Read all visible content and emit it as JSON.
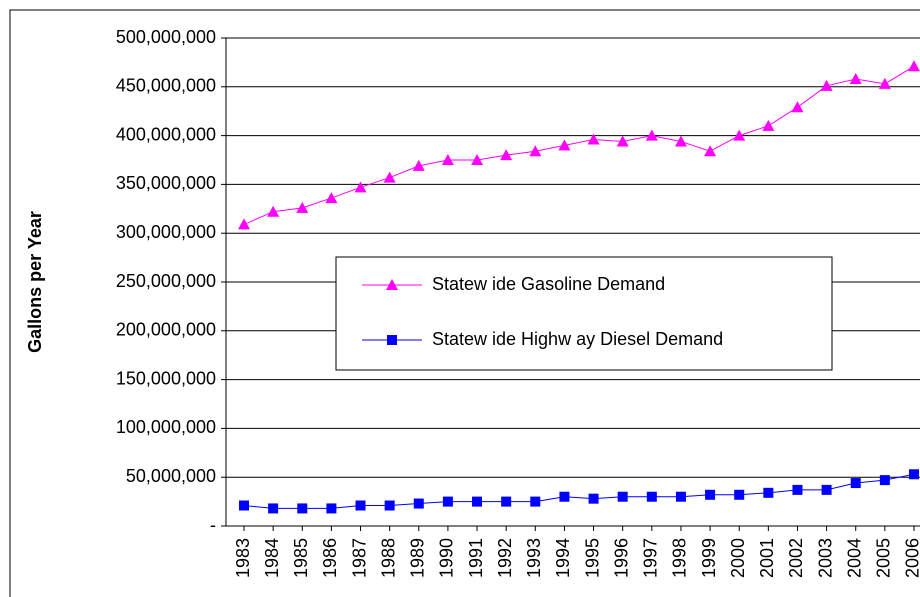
{
  "chart_data": {
    "type": "line",
    "y_label": "Gallons per Year",
    "categories": [
      "1983",
      "1984",
      "1985",
      "1986",
      "1987",
      "1988",
      "1989",
      "1990",
      "1991",
      "1992",
      "1993",
      "1994",
      "1995",
      "1996",
      "1997",
      "1998",
      "1999",
      "2000",
      "2001",
      "2002",
      "2003",
      "2004",
      "2005",
      "2006"
    ],
    "series": [
      {
        "name": "Statew ide Gasoline Demand",
        "color": "#ff00ff",
        "marker": "triangle",
        "values": [
          309000000,
          322000000,
          326000000,
          336000000,
          347000000,
          357000000,
          369000000,
          375000000,
          375000000,
          380000000,
          384000000,
          390000000,
          396000000,
          394000000,
          400000000,
          394000000,
          384000000,
          400000000,
          410000000,
          429000000,
          451000000,
          458000000,
          453000000,
          471000000
        ]
      },
      {
        "name": "Statew ide Highw ay Diesel Demand",
        "color": "#0000ff",
        "marker": "square",
        "values": [
          21000000,
          18000000,
          18000000,
          18000000,
          21000000,
          21000000,
          23000000,
          25000000,
          25000000,
          25000000,
          25000000,
          30000000,
          28000000,
          30000000,
          30000000,
          30000000,
          32000000,
          32000000,
          34000000,
          37000000,
          37000000,
          44000000,
          47000000,
          53000000
        ]
      }
    ],
    "ylim": [
      0,
      500000000
    ],
    "yticks": [
      {
        "value": 0,
        "label": "-"
      },
      {
        "value": 50000000,
        "label": "50,000,000"
      },
      {
        "value": 100000000,
        "label": "100,000,000"
      },
      {
        "value": 150000000,
        "label": "150,000,000"
      },
      {
        "value": 200000000,
        "label": "200,000,000"
      },
      {
        "value": 250000000,
        "label": "250,000,000"
      },
      {
        "value": 300000000,
        "label": "300,000,000"
      },
      {
        "value": 350000000,
        "label": "350,000,000"
      },
      {
        "value": 400000000,
        "label": "400,000,000"
      },
      {
        "value": 450000000,
        "label": "450,000,000"
      },
      {
        "value": 500000000,
        "label": "500,000,000"
      }
    ],
    "grid": true
  }
}
